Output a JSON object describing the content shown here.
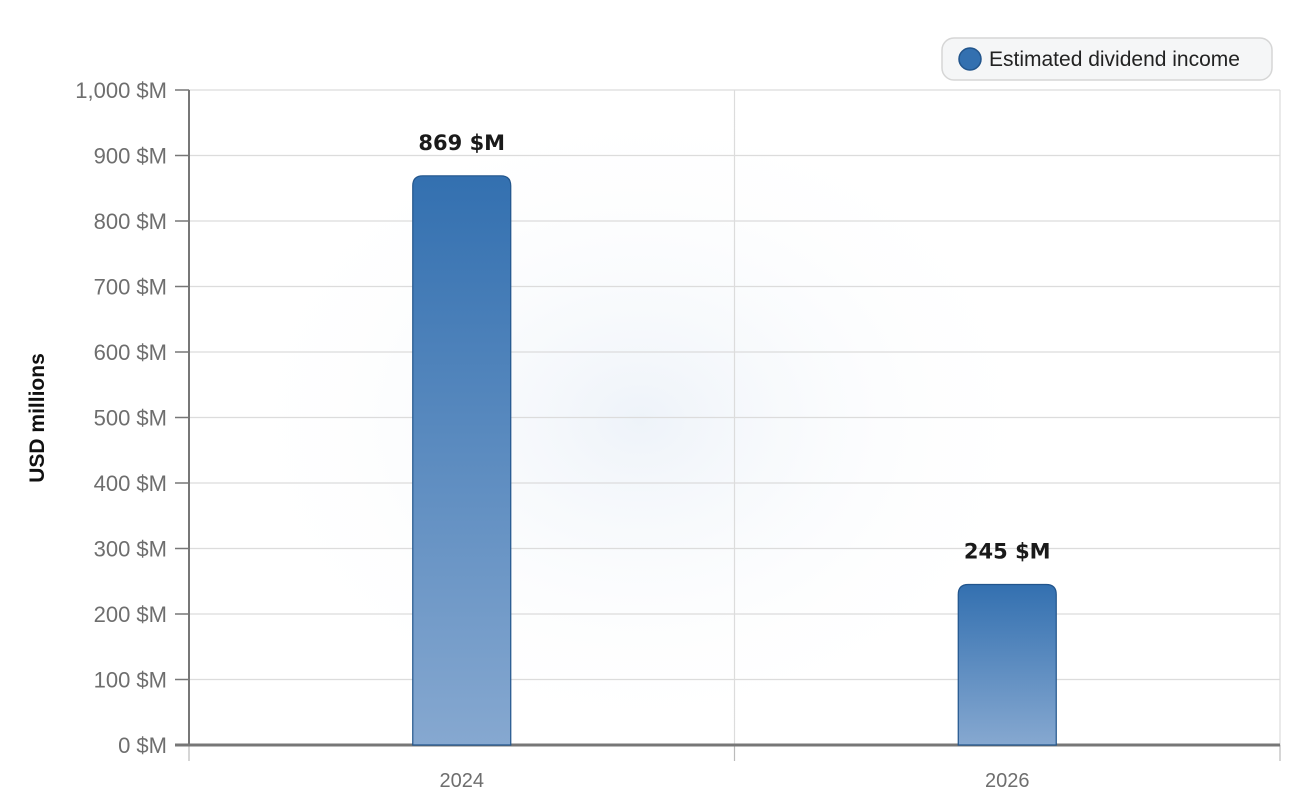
{
  "chart_data": {
    "type": "bar",
    "categories": [
      "2024",
      "2026"
    ],
    "series": [
      {
        "name": "Estimated dividend income",
        "values": [
          869,
          245
        ]
      }
    ],
    "data_labels": [
      "869 $M",
      "245 $M"
    ],
    "ylabel": "USD millions",
    "xlabel": "",
    "ylim": [
      0,
      1000
    ],
    "y_ticks": [
      0,
      100,
      200,
      300,
      400,
      500,
      600,
      700,
      800,
      900,
      1000
    ],
    "y_tick_labels": [
      "0 $M",
      "100 $M",
      "200 $M",
      "300 $M",
      "400 $M",
      "500 $M",
      "600 $M",
      "700 $M",
      "800 $M",
      "900 $M",
      "1,000 $M"
    ],
    "grid": true,
    "legend_position": "top-right",
    "colors": {
      "bar_top": "#3370b0",
      "bar_bottom": "#86a8d0",
      "bar_stroke": "#22558c",
      "legend_marker": "#3370b0"
    }
  }
}
